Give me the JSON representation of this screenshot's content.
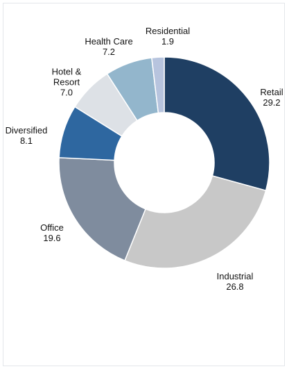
{
  "chart_data": {
    "type": "donut",
    "categories": [
      "Retail",
      "Industrial",
      "Office",
      "Diversified",
      "Hotel & Resort",
      "Health Care",
      "Residential"
    ],
    "values": [
      29.2,
      26.8,
      19.6,
      8.1,
      7.0,
      7.2,
      1.9
    ],
    "value_labels": [
      "29.2",
      "26.8",
      "19.6",
      "8.1",
      "7.0",
      "7.2",
      "1.9"
    ],
    "colors": [
      "#1f3f63",
      "#c8c8c8",
      "#7f8c9e",
      "#2e67a0",
      "#dde1e6",
      "#93b6cc",
      "#b7c4de"
    ]
  }
}
